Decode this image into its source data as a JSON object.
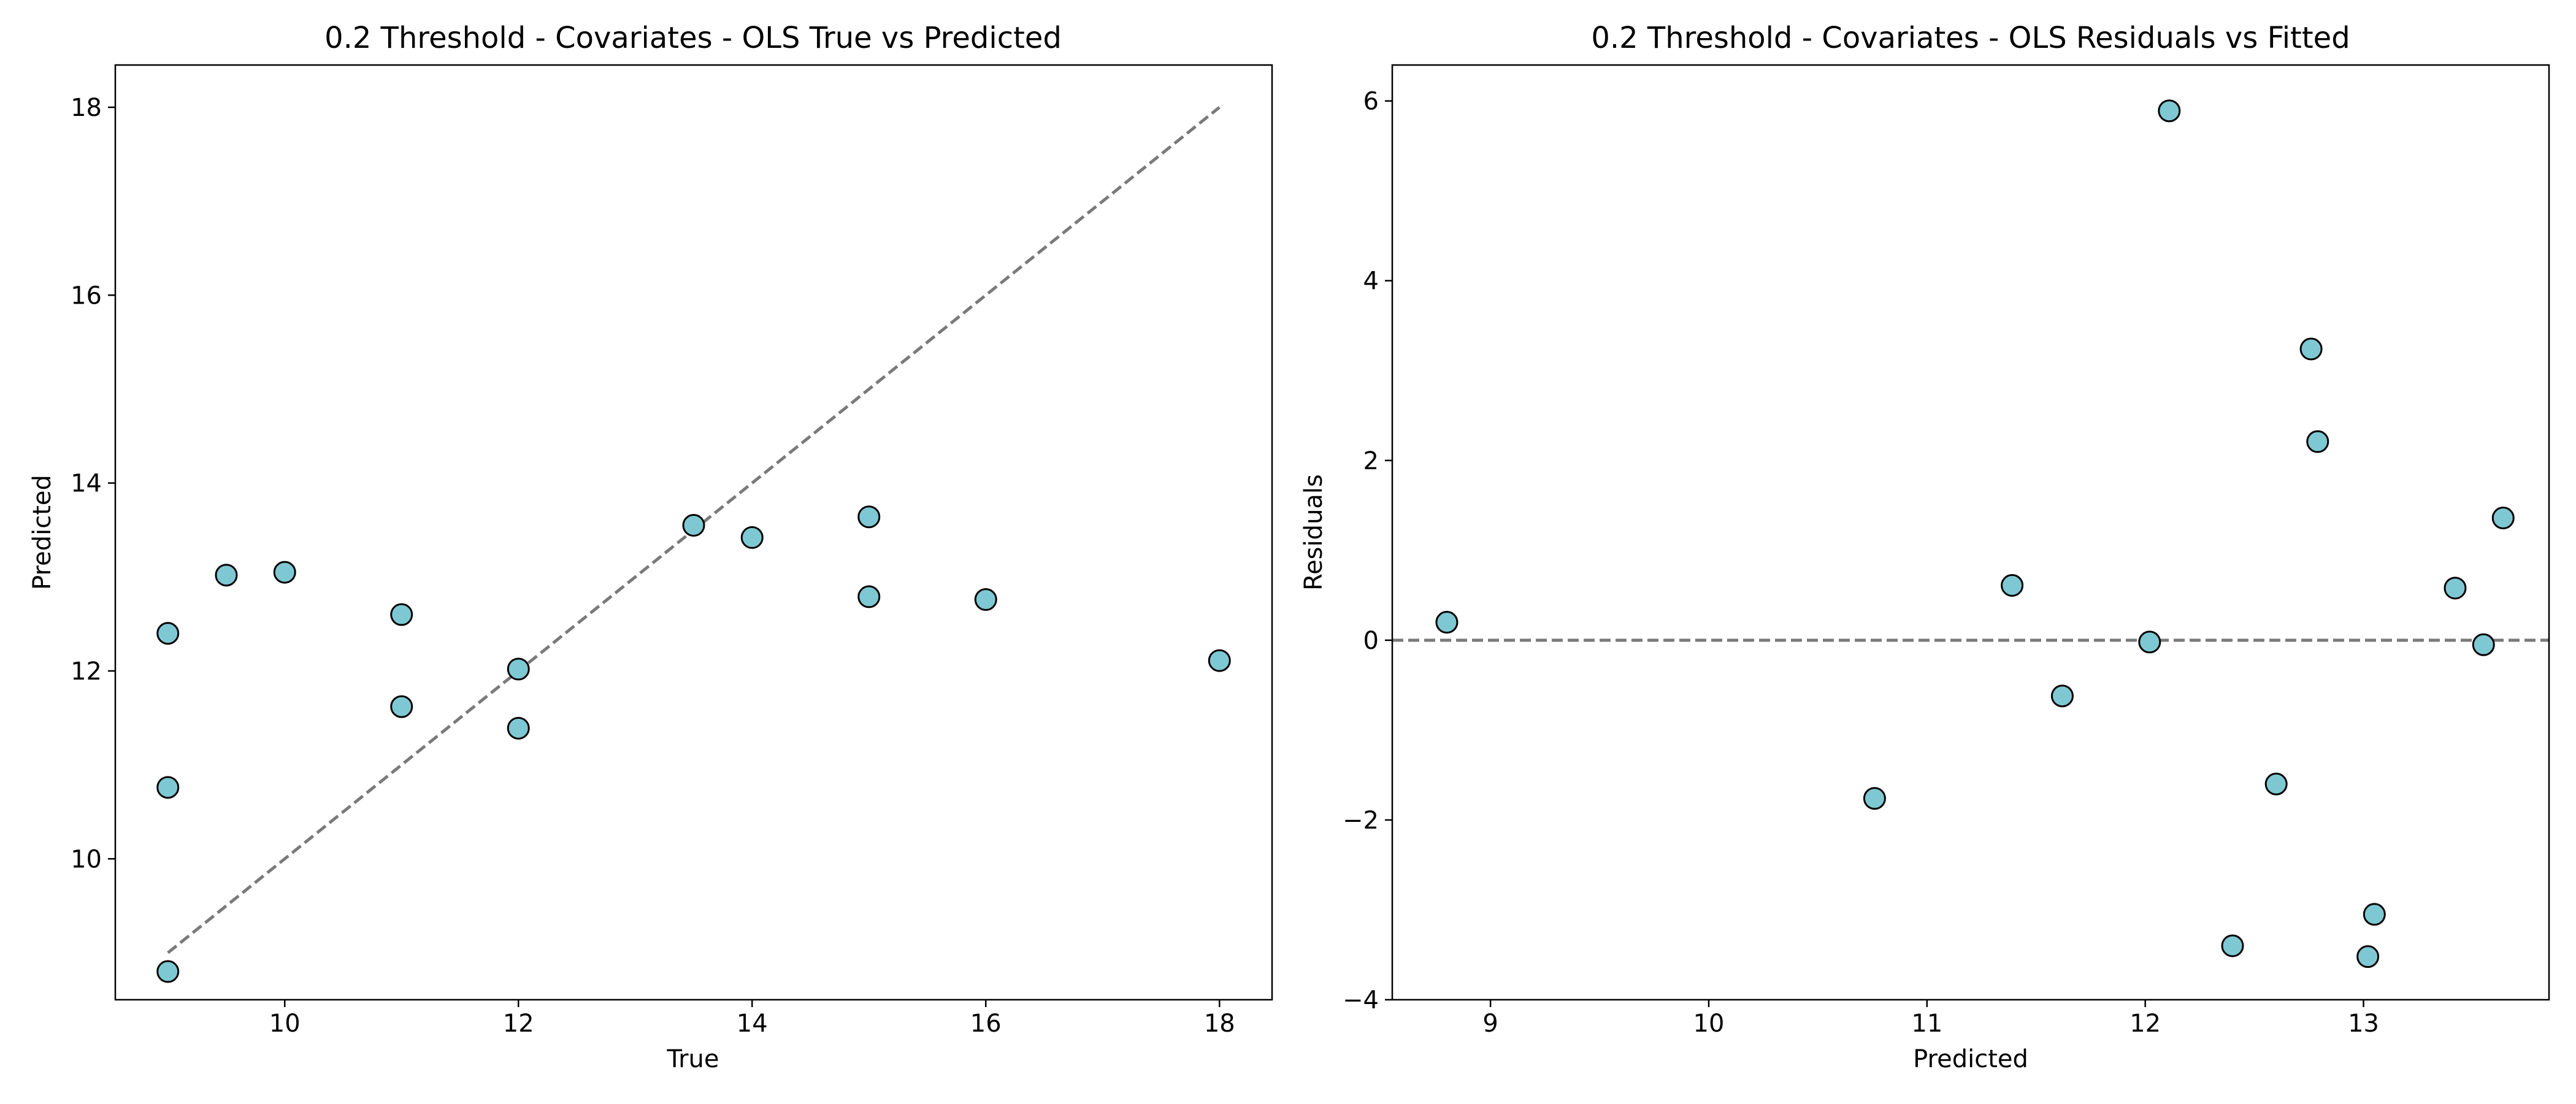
{
  "colors": {
    "point_fill": "#7ec8d3",
    "point_edge": "#000000",
    "reference_line": "#7a7a7a",
    "background": "#ffffff"
  },
  "chart_data": [
    {
      "type": "scatter",
      "title": "0.2 Threshold - Covariates - OLS True vs Predicted",
      "xlabel": "True",
      "ylabel": "Predicted",
      "xlim": [
        8.55,
        18.45
      ],
      "ylim": [
        8.5,
        18.45
      ],
      "xticks": [
        10,
        12,
        14,
        16,
        18
      ],
      "yticks": [
        10,
        12,
        14,
        16,
        18
      ],
      "grid": false,
      "reference_line": {
        "style": "dashed",
        "from": [
          9,
          9
        ],
        "to": [
          18,
          18
        ]
      },
      "points": [
        {
          "x": 9,
          "y": 8.8
        },
        {
          "x": 9,
          "y": 10.76
        },
        {
          "x": 9,
          "y": 12.4
        },
        {
          "x": 9.5,
          "y": 13.02
        },
        {
          "x": 10,
          "y": 13.05
        },
        {
          "x": 11,
          "y": 12.6
        },
        {
          "x": 11,
          "y": 11.62
        },
        {
          "x": 12,
          "y": 12.02
        },
        {
          "x": 12,
          "y": 11.39
        },
        {
          "x": 13.5,
          "y": 13.55
        },
        {
          "x": 14,
          "y": 13.42
        },
        {
          "x": 15,
          "y": 13.64
        },
        {
          "x": 15,
          "y": 12.79
        },
        {
          "x": 16,
          "y": 12.76
        },
        {
          "x": 18,
          "y": 12.11
        }
      ]
    },
    {
      "type": "scatter",
      "title": "0.2 Threshold - Covariates - OLS Residuals vs Fitted",
      "xlabel": "Predicted",
      "ylabel": "Residuals",
      "xlim": [
        8.55,
        13.85
      ],
      "ylim": [
        -4.0,
        6.4
      ],
      "xticks": [
        9,
        10,
        11,
        12,
        13
      ],
      "yticks": [
        -4,
        -2,
        0,
        2,
        4,
        6
      ],
      "grid": false,
      "reference_line": {
        "style": "dashed",
        "y": 0
      },
      "points": [
        {
          "x": 8.8,
          "y": 0.2
        },
        {
          "x": 10.76,
          "y": -1.76
        },
        {
          "x": 11.39,
          "y": 0.61
        },
        {
          "x": 11.62,
          "y": -0.62
        },
        {
          "x": 12.02,
          "y": -0.02
        },
        {
          "x": 12.11,
          "y": 5.89
        },
        {
          "x": 12.4,
          "y": -3.4
        },
        {
          "x": 12.6,
          "y": -1.6
        },
        {
          "x": 12.76,
          "y": 3.24
        },
        {
          "x": 12.79,
          "y": 2.21
        },
        {
          "x": 13.02,
          "y": -3.52
        },
        {
          "x": 13.05,
          "y": -3.05
        },
        {
          "x": 13.42,
          "y": 0.58
        },
        {
          "x": 13.55,
          "y": -0.05
        },
        {
          "x": 13.64,
          "y": 1.36
        }
      ]
    }
  ]
}
